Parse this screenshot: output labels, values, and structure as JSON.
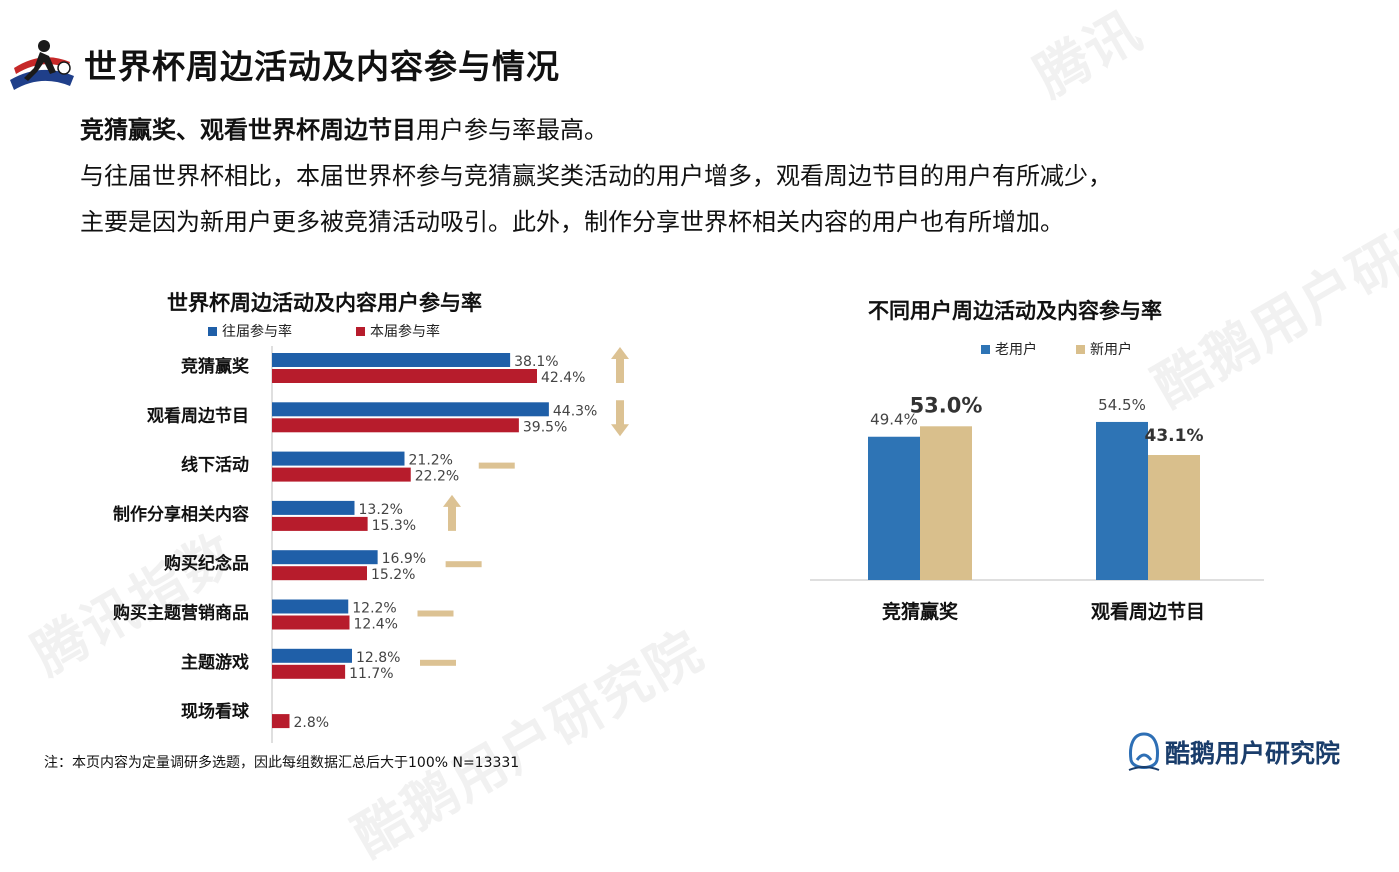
{
  "header": {
    "title": "世界杯周边活动及内容参与情况",
    "line1_bold": "竞猜赢奖、观看世界杯周边节目",
    "line1_rest": "用户参与率最高。",
    "line2": "与往届世界杯相比，本届世界杯参与竞猜赢奖类活动的用户增多，观看周边节目的用户有所减少，",
    "line3": "主要是因为新用户更多被竞猜活动吸引。此外，制作分享世界杯相关内容的用户也有所增加。"
  },
  "watermarks": [
    "酷鹅用户研究院",
    "腾讯指数",
    "腾讯"
  ],
  "colors": {
    "previous": "#1f5fa8",
    "current": "#b71c2c",
    "old_user": "#2e74b5",
    "new_user": "#d9bf8c",
    "arrow": "#dcc293"
  },
  "chart_data": [
    {
      "type": "bar",
      "orientation": "horizontal",
      "title": "世界杯周边活动及内容用户参与率",
      "categories": [
        "竞猜赢奖",
        "观看周边节目",
        "线下活动",
        "制作分享相关内容",
        "购买纪念品",
        "购买主题营销商品",
        "主题游戏",
        "现场看球"
      ],
      "series": [
        {
          "name": "往届参与率",
          "values": [
            38.1,
            44.3,
            21.2,
            13.2,
            16.9,
            12.2,
            12.8,
            null
          ],
          "labels": [
            "38.1%",
            "44.3%",
            "21.2%",
            "13.2%",
            "16.9%",
            "12.2%",
            "12.8%",
            ""
          ]
        },
        {
          "name": "本届参与率",
          "values": [
            42.4,
            39.5,
            22.2,
            15.3,
            15.2,
            12.4,
            11.7,
            2.8
          ],
          "labels": [
            "42.4%",
            "39.5%",
            "22.2%",
            "15.3%",
            "15.2%",
            "12.4%",
            "11.7%",
            "2.8%"
          ]
        }
      ],
      "trend": [
        "up",
        "down",
        "flat",
        "up",
        "flat",
        "flat",
        "flat",
        null
      ],
      "legend": "top"
    },
    {
      "type": "bar",
      "title": "不同用户周边活动及内容参与率",
      "categories": [
        "竞猜赢奖",
        "观看周边节目"
      ],
      "series": [
        {
          "name": "老用户",
          "values": [
            49.4,
            54.5
          ],
          "labels": [
            "49.4%",
            "54.5%"
          ]
        },
        {
          "name": "新用户",
          "values": [
            53.0,
            43.1
          ],
          "labels": [
            "53.0%",
            "43.1%"
          ]
        }
      ],
      "highlighted": [
        "53.0%",
        "43.1%"
      ],
      "legend": "top"
    }
  ],
  "footnote": "注：本页内容为定量调研多选题，因此每组数据汇总后大于100%   N=13331",
  "brand": {
    "name": "酷鹅用户研究院"
  }
}
